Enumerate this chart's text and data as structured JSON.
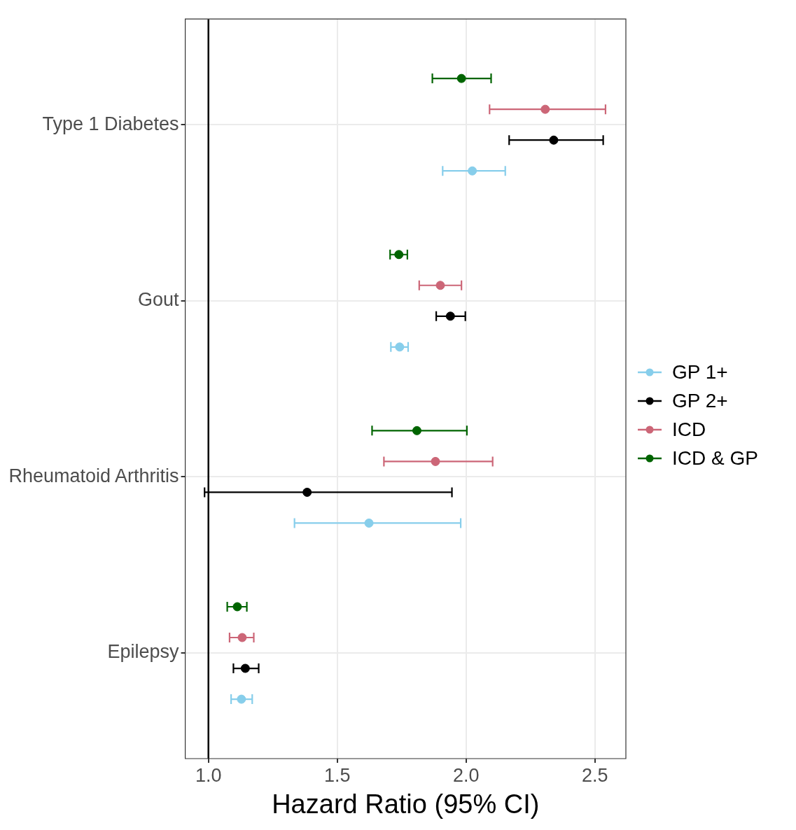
{
  "chart_data": {
    "type": "scatter",
    "orientation": "horizontal",
    "xlabel": "Hazard Ratio (95% CI)",
    "categories": [
      "Type 1 Diabetes",
      "Gout",
      "Rheumatoid Arthritis",
      "Epilepsy"
    ],
    "xlim": [
      0.91,
      2.62
    ],
    "xticks": [
      {
        "value": 1,
        "label": "1.0"
      },
      1.5,
      {
        "value": 2,
        "label": "2.0"
      },
      2.5
    ],
    "grid": true,
    "legend": "right",
    "marker": "circle",
    "ref_lines": [
      {
        "axis": "x",
        "value": 1,
        "color": "#000000"
      }
    ],
    "series": [
      {
        "name": "GP 1+",
        "color": "#87ceeb",
        "values": [
          2.024,
          1.742,
          1.623,
          1.128
        ],
        "errors": [
          [
            1.909,
            2.152
          ],
          [
            1.708,
            1.775
          ],
          [
            1.334,
            1.979
          ],
          [
            1.088,
            1.17
          ]
        ]
      },
      {
        "name": "GP 2+",
        "color": "#000000",
        "values": [
          2.34,
          1.939,
          1.383,
          1.143
        ],
        "errors": [
          [
            2.167,
            2.532
          ],
          [
            1.884,
            1.997
          ],
          [
            0.985,
            1.945
          ],
          [
            1.097,
            1.195
          ]
        ]
      },
      {
        "name": "ICD",
        "color": "#cc6677",
        "values": [
          2.307,
          1.9,
          1.881,
          1.131
        ],
        "errors": [
          [
            2.091,
            2.541
          ],
          [
            1.818,
            1.982
          ],
          [
            1.681,
            2.103
          ],
          [
            1.082,
            1.176
          ]
        ]
      },
      {
        "name": "ICD & GP",
        "color": "#006400",
        "values": [
          1.982,
          1.739,
          1.809,
          1.112
        ],
        "errors": [
          [
            1.869,
            2.097
          ],
          [
            1.705,
            1.772
          ],
          [
            1.635,
            2.003
          ],
          [
            1.073,
            1.149
          ]
        ]
      }
    ]
  }
}
